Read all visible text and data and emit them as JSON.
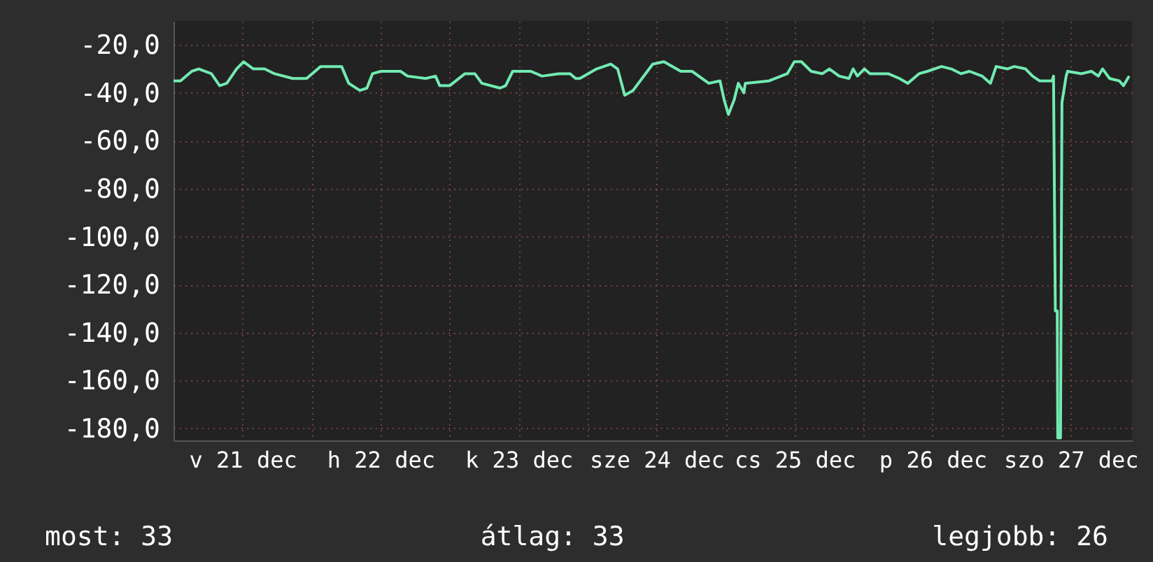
{
  "chart_data": {
    "type": "line",
    "x": [
      "--12-21T00:00",
      "--12-21T01:13",
      "--12-21T03:10",
      "--12-21T04:23",
      "--12-21T06:35",
      "--12-21T08:02",
      "--12-21T09:16",
      "--12-21T10:58",
      "--12-21T12:11",
      "--12-21T13:53",
      "--12-21T15:50",
      "--12-21T17:33",
      "--12-21T20:43",
      "--12-21T23:09",
      "--12-22T01:35",
      "--12-22T04:02",
      "--12-22T05:14",
      "--12-22T06:28",
      "--12-22T08:25",
      "--12-22T09:38",
      "--12-22T10:36",
      "--12-22T12:04",
      "--12-22T15:29",
      "--12-22T16:42",
      "--12-22T19:52",
      "--12-22T21:34",
      "--12-22T22:18",
      "--12-23T00:01",
      "--12-23T02:41",
      "--12-23T04:24",
      "--12-23T05:37",
      "--12-23T08:47",
      "--12-23T09:45",
      "--12-23T10:59",
      "--12-23T14:08",
      "--12-23T16:05",
      "--12-23T19:01",
      "--12-23T20:58",
      "--12-23T21:56",
      "--12-23T22:40",
      "--12-24T01:35",
      "--12-24T04:02",
      "--12-24T05:14",
      "--12-24T06:28",
      "--12-24T07:55",
      "--12-24T11:20",
      "--12-24T13:17",
      "--12-24T16:13",
      "--12-24T18:10",
      "--12-24T21:05",
      "--12-24T23:02",
      "--12-24T23:46",
      "--12-25T00:30",
      "--12-25T01:29",
      "--12-25T02:13",
      "--12-25T03:11",
      "--12-25T03:26",
      "--12-25T07:34",
      "--12-25T10:44",
      "--12-25T11:58",
      "--12-25T13:11",
      "--12-25T14:53",
      "--12-25T16:50",
      "--12-25T18:03",
      "--12-25T19:46",
      "--12-25T21:28",
      "--12-25T22:11",
      "--12-25T22:55",
      "--12-26T00:08",
      "--12-26T01:07",
      "--12-26T04:17",
      "--12-26T06:14",
      "--12-26T07:42",
      "--12-26T09:39",
      "--12-26T11:07",
      "--12-26T13:33",
      "--12-26T15:15",
      "--12-26T16:58",
      "--12-26T18:25",
      "--12-26T20:37",
      "--12-26T22:04",
      "--12-26T23:03",
      "--12-27T01:00",
      "--12-27T02:13",
      "--12-27T04:10",
      "--12-27T05:23",
      "--12-27T06:36",
      "--12-27T08:47",
      "--12-27T09:02",
      "--12-27T09:21",
      "--12-27T09:41",
      "--12-27T09:46",
      "--12-27T10:15",
      "--12-27T10:30",
      "--12-27T11:14",
      "--12-27T11:28",
      "--12-27T13:55",
      "--12-27T15:37",
      "--12-27T16:50",
      "--12-27T17:34",
      "--12-27T18:47",
      "--12-27T20:29",
      "--12-27T21:13",
      "--12-27T22:11"
    ],
    "series": [
      {
        "color": "#72eab2",
        "values": [
          -35,
          -35,
          -31,
          -30,
          -32,
          -37,
          -36,
          -30,
          -27,
          -30,
          -30,
          -32,
          -34,
          -34,
          -29,
          -29,
          -29,
          -36,
          -39,
          -38,
          -32,
          -31,
          -31,
          -33,
          -34,
          -33,
          -37,
          -37,
          -32,
          -32,
          -36,
          -38,
          -37,
          -31,
          -31,
          -33,
          -32,
          -32,
          -34,
          -34,
          -30,
          -28,
          -30,
          -41,
          -39,
          -28,
          -27,
          -31,
          -31,
          -36,
          -35,
          -43,
          -49,
          -43,
          -36,
          -40,
          -36,
          -35,
          -32,
          -27,
          -27,
          -31,
          -32,
          -30,
          -33,
          -34,
          -30,
          -33,
          -30,
          -32,
          -32,
          -34,
          -36,
          -32,
          -31,
          -29,
          -30,
          -32,
          -31,
          -33,
          -36,
          -29,
          -30,
          -29,
          -30,
          -33,
          -35,
          -35,
          -33,
          -131,
          -131,
          -184,
          -184,
          -44,
          -33,
          -31,
          -32,
          -31,
          -33,
          -30,
          -34,
          -35,
          -37,
          -33
        ]
      }
    ],
    "xlim": [
      "--12-21T00:00",
      "--12-27T22:41"
    ],
    "xticks": [
      {
        "value": "--12-21T12:00",
        "label": "v 21 dec"
      },
      {
        "value": "--12-22T00:00",
        "label": null
      },
      {
        "value": "--12-22T12:00",
        "label": "h 22 dec"
      },
      {
        "value": "--12-23T00:00",
        "label": null
      },
      {
        "value": "--12-23T12:00",
        "label": "k 23 dec"
      },
      {
        "value": "--12-24T00:00",
        "label": null
      },
      {
        "value": "--12-24T12:00",
        "label": "sze 24 dec"
      },
      {
        "value": "--12-25T00:00",
        "label": null
      },
      {
        "value": "--12-25T12:00",
        "label": "cs 25 dec"
      },
      {
        "value": "--12-26T00:00",
        "label": null
      },
      {
        "value": "--12-26T12:00",
        "label": "p 26 dec"
      },
      {
        "value": "--12-27T00:00",
        "label": null
      },
      {
        "value": "--12-27T12:00",
        "label": "szo 27 dec"
      }
    ],
    "ylim": [
      -185,
      -10
    ],
    "yticks": [
      {
        "value": -20,
        "label": "-20,0"
      },
      {
        "value": -40,
        "label": "-40,0"
      },
      {
        "value": -60,
        "label": "-60,0"
      },
      {
        "value": -80,
        "label": "-80,0"
      },
      {
        "value": -100,
        "label": "-100,0"
      },
      {
        "value": -120,
        "label": "-120,0"
      },
      {
        "value": -140,
        "label": "-140,0"
      },
      {
        "value": -160,
        "label": "-160,0"
      },
      {
        "value": -180,
        "label": "-180,0"
      }
    ],
    "grid": true,
    "annotations": [
      "most: 33",
      "átlag: 33",
      "legjobb: 26"
    ]
  }
}
